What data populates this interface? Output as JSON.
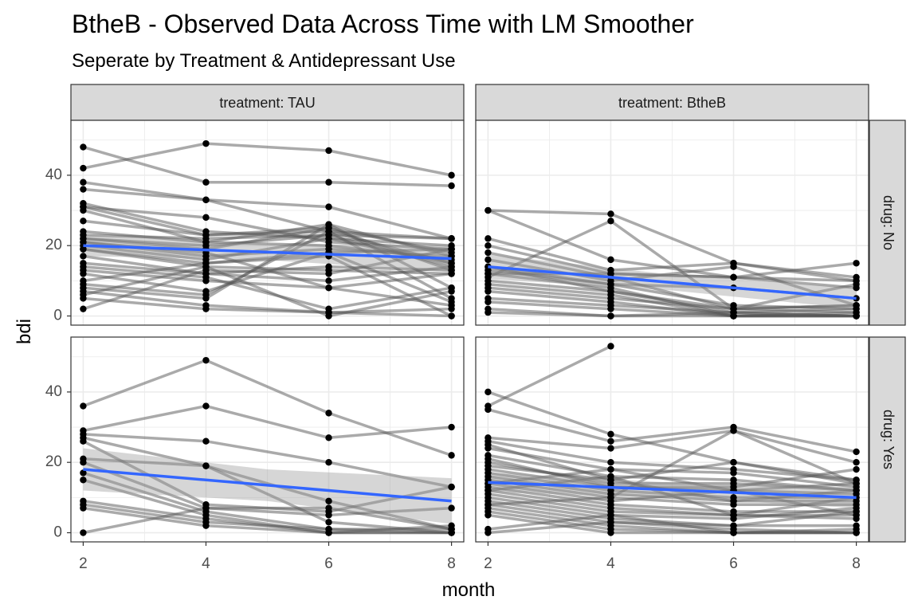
{
  "chart_data": {
    "type": "line",
    "title": "BtheB - Observed Data Across Time with LM Smoother",
    "subtitle": "Seperate by Treatment & Antidepressant Use",
    "xlabel": "month",
    "ylabel": "bdi",
    "xlim": [
      1.8,
      8.2
    ],
    "ylim": [
      -2.6,
      55.6
    ],
    "x_ticks": [
      2,
      4,
      6,
      8
    ],
    "y_ticks": [
      0,
      20,
      40
    ],
    "grid": true,
    "colors": {
      "trajectory": "#555555",
      "point": "#000000",
      "smoother": "#3366FF",
      "ribbon": "#999999",
      "strip_fill": "#D9D9D9",
      "grid": "#EBEBEB"
    },
    "column_facet_labels": [
      "treatment: TAU",
      "treatment: BtheB"
    ],
    "row_facet_labels": [
      "drug: No",
      "drug: Yes"
    ],
    "panels": [
      {
        "treatment": "TAU",
        "drug": "No",
        "smoother": {
          "x": [
            2,
            8
          ],
          "y": [
            20,
            16.3
          ]
        },
        "ribbon_halfwidth": {
          "start": 3,
          "end": 3.8
        },
        "subjects": [
          [
            48,
            38,
            38,
            37
          ],
          [
            42,
            49,
            47,
            40
          ],
          [
            38,
            33,
            31,
            22
          ],
          [
            36,
            33,
            24,
            22
          ],
          [
            32,
            24,
            22,
            20
          ],
          [
            31,
            28,
            21,
            19
          ],
          [
            31,
            23,
            25,
            18
          ],
          [
            30,
            21,
            26,
            17
          ],
          [
            27,
            23,
            24,
            15
          ],
          [
            24,
            21,
            20,
            16
          ],
          [
            23,
            22,
            23,
            14
          ],
          [
            22,
            20,
            23,
            22
          ],
          [
            22,
            19,
            25,
            13
          ],
          [
            21,
            18,
            8,
            12
          ],
          [
            21,
            17,
            19,
            17
          ],
          [
            20,
            16,
            22,
            15
          ],
          [
            19,
            15,
            18,
            19
          ],
          [
            19,
            14,
            13,
            12
          ],
          [
            17,
            12,
            14,
            13
          ],
          [
            15,
            12,
            10,
            14
          ],
          [
            14,
            11,
            2,
            8
          ],
          [
            13,
            10,
            8,
            3
          ],
          [
            12,
            7,
            18,
            4
          ],
          [
            10,
            15,
            17,
            0
          ],
          [
            9,
            6,
            24,
            5
          ],
          [
            8,
            5,
            26,
            8
          ],
          [
            7,
            3,
            1,
            0
          ],
          [
            6,
            14,
            0,
            7
          ],
          [
            5,
            2,
            1,
            2
          ],
          [
            2,
            13,
            12,
            19
          ]
        ]
      },
      {
        "treatment": "BtheB",
        "drug": "No",
        "smoother": {
          "x": [
            2,
            8
          ],
          "y": [
            14,
            5
          ]
        },
        "ribbon_halfwidth": {
          "start": 3.5,
          "end": 3
        },
        "subjects": [
          [
            30,
            29,
            15,
            10
          ],
          [
            30,
            16,
            11,
            8
          ],
          [
            22,
            13,
            15,
            11
          ],
          [
            20,
            12,
            11,
            15
          ],
          [
            18,
            11,
            2,
            9
          ],
          [
            16,
            10,
            14,
            3
          ],
          [
            14,
            9,
            3,
            2
          ],
          [
            13,
            9,
            8,
            5
          ],
          [
            12,
            8,
            0,
            0
          ],
          [
            11,
            27,
            2,
            3
          ],
          [
            10,
            7,
            1,
            2
          ],
          [
            9,
            6,
            0,
            0
          ],
          [
            8,
            5,
            2,
            1
          ],
          [
            7,
            4,
            0,
            1
          ],
          [
            5,
            3,
            1,
            0
          ],
          [
            4,
            2,
            0,
            0
          ],
          [
            2,
            0,
            1,
            0
          ],
          [
            1,
            0,
            0,
            0
          ],
          [
            12,
            12,
            11,
            10
          ],
          [
            14,
            7,
            2,
            3
          ]
        ]
      },
      {
        "treatment": "TAU",
        "drug": "Yes",
        "smoother": {
          "x": [
            2,
            8
          ],
          "y": [
            18,
            9
          ]
        },
        "ribbon_halfwidth": {
          "start": 6,
          "end": 6.5
        },
        "subjects": [
          [
            36,
            49,
            34,
            22
          ],
          [
            29,
            36,
            27,
            30
          ],
          [
            28,
            26,
            20,
            13
          ],
          [
            27,
            19,
            9,
            1
          ],
          [
            26,
            8,
            6,
            13
          ],
          [
            21,
            19,
            3,
            0
          ],
          [
            20,
            7,
            5,
            7
          ],
          [
            17,
            6,
            1,
            1
          ],
          [
            15,
            5,
            0,
            2
          ],
          [
            9,
            4,
            0,
            0
          ],
          [
            8,
            3,
            1,
            0
          ],
          [
            7,
            2,
            0,
            0
          ],
          [
            0,
            7,
            7,
            1
          ]
        ]
      },
      {
        "treatment": "BtheB",
        "drug": "Yes",
        "smoother": {
          "x": [
            2,
            8
          ],
          "y": [
            14.3,
            10
          ]
        },
        "ribbon_halfwidth": {
          "start": 2.8,
          "end": 3
        },
        "subjects": [
          [
            36,
            53
          ],
          [
            40,
            28,
            20,
            15
          ],
          [
            35,
            26,
            30,
            23
          ],
          [
            27,
            24,
            29,
            20
          ],
          [
            26,
            20,
            18,
            15
          ],
          [
            25,
            15,
            20,
            14
          ],
          [
            24,
            18,
            17,
            13
          ],
          [
            22,
            16,
            15,
            12
          ],
          [
            20,
            14,
            14,
            12
          ],
          [
            18,
            13,
            12,
            11
          ],
          [
            17,
            12,
            10,
            10
          ],
          [
            16,
            11,
            9,
            9
          ],
          [
            15,
            10,
            8,
            8
          ],
          [
            14,
            9,
            12,
            14
          ],
          [
            13,
            8,
            6,
            6
          ],
          [
            12,
            7,
            5,
            5
          ],
          [
            11,
            6,
            5,
            4
          ],
          [
            10,
            5,
            4,
            7
          ],
          [
            9,
            4,
            2,
            2
          ],
          [
            8,
            3,
            1,
            0
          ],
          [
            7,
            2,
            0,
            1
          ],
          [
            6,
            1,
            0,
            0
          ],
          [
            5,
            0,
            0,
            0
          ],
          [
            1,
            5,
            0,
            0
          ],
          [
            0,
            3,
            2,
            6
          ],
          [
            19,
            15,
            9,
            12
          ],
          [
            21,
            13,
            13,
            18
          ],
          [
            12,
            16,
            5,
            10
          ],
          [
            8,
            10,
            29,
            14
          ],
          [
            14,
            18,
            12,
            5
          ]
        ]
      }
    ]
  }
}
